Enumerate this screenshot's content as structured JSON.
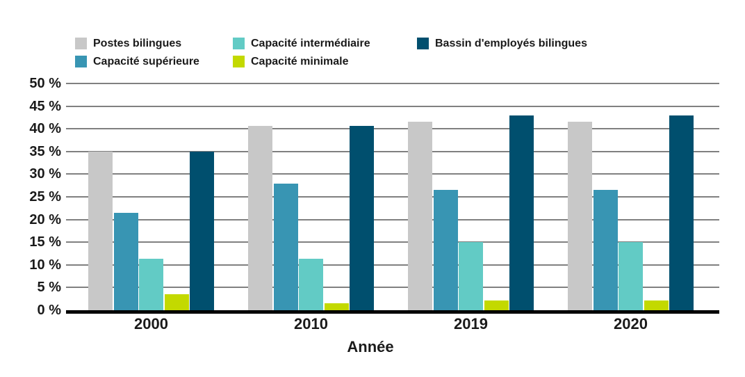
{
  "chart_data": {
    "type": "bar",
    "title": "",
    "xlabel": "Année",
    "ylabel": "",
    "ylim": [
      0,
      50
    ],
    "ytick_step": 5,
    "ytick_suffix": " %",
    "grid": true,
    "legend_position": "top",
    "legend_columns": [
      [
        0,
        1
      ],
      [
        2,
        3
      ],
      [
        4
      ]
    ],
    "categories": [
      "2000",
      "2010",
      "2019",
      "2020"
    ],
    "series": [
      {
        "name": "Postes bilingues",
        "color": "#c8c8c8",
        "values": [
          35.0,
          40.6,
          41.5,
          41.5
        ]
      },
      {
        "name": "Capacité supérieure",
        "color": "#3895b3",
        "values": [
          21.4,
          27.9,
          26.5,
          26.5
        ]
      },
      {
        "name": "Capacité intermédiaire",
        "color": "#62cbc5",
        "values": [
          11.3,
          11.3,
          15.0,
          15.0
        ]
      },
      {
        "name": "Capacité minimale",
        "color": "#c3d900",
        "values": [
          3.6,
          1.5,
          2.2,
          2.2
        ]
      },
      {
        "name": "Bassin d'employés bilingues",
        "color": "#004f6e",
        "values": [
          35.0,
          40.6,
          42.9,
          42.9
        ]
      }
    ],
    "colors": {
      "grid": "#808080",
      "axis": "#000000",
      "text": "#1a1a1a",
      "background": "#ffffff"
    }
  }
}
